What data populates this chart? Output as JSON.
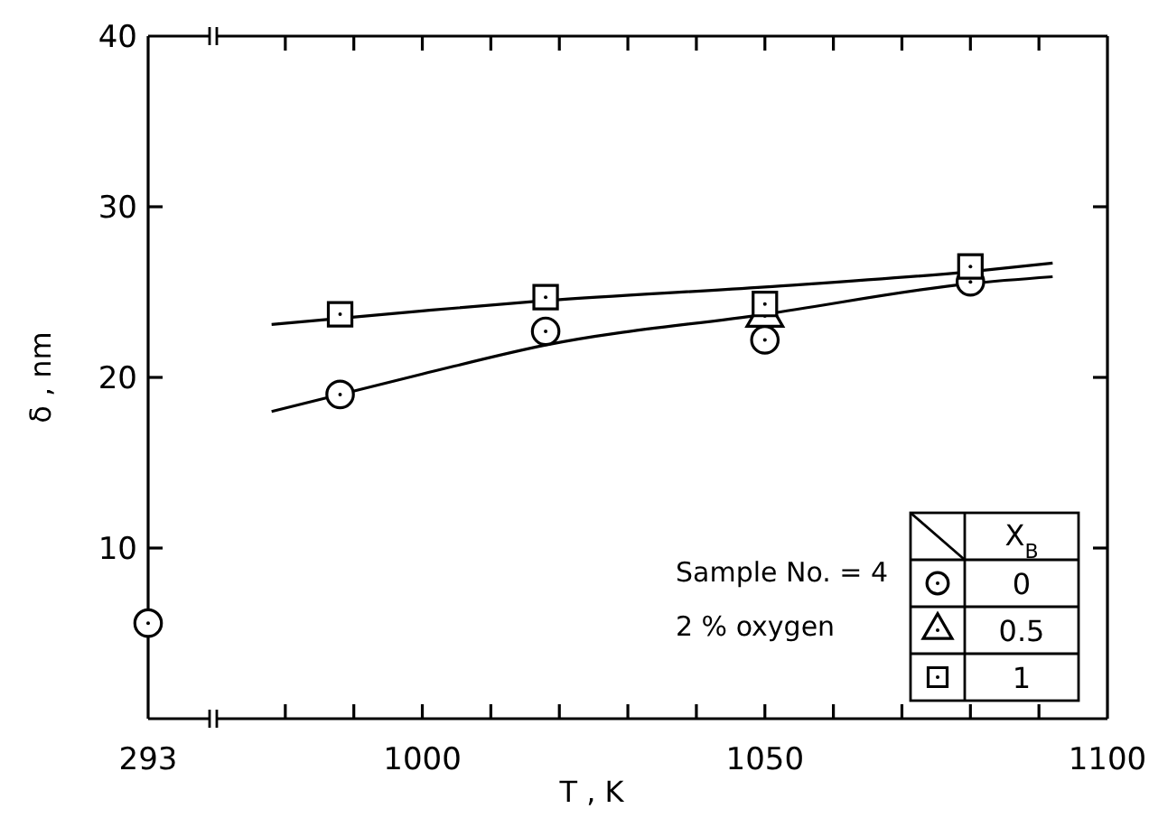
{
  "chart_data": [
    {
      "type": "scatter",
      "ylabel": "δ , nm",
      "categories": [
        "293"
      ],
      "ylim": [
        0,
        40
      ],
      "yticks": [
        10,
        20,
        30,
        40
      ],
      "series": [
        {
          "marker": "circle",
          "color": "#000000",
          "values": [
            5.6
          ]
        }
      ]
    },
    {
      "type": "scatter",
      "xlabel": "T , K",
      "legend_title": "X$_{B}$",
      "legend": "bottom right",
      "tick_labels": "x",
      "xlim": [
        970,
        1100
      ],
      "ylim": [
        0,
        40
      ],
      "xticks": [
        {
          "value": 980,
          "label": null
        },
        {
          "value": 990,
          "label": null
        },
        1000,
        {
          "value": 1010,
          "label": null
        },
        {
          "value": 1020,
          "label": null
        },
        {
          "value": 1030,
          "label": null
        },
        {
          "value": 1040,
          "label": null
        },
        1050,
        {
          "value": 1060,
          "label": null
        },
        {
          "value": 1070,
          "label": null
        },
        {
          "value": 1080,
          "label": null
        },
        {
          "value": 1090,
          "label": null
        },
        1100
      ],
      "yticks": [
        10,
        20,
        30,
        40
      ],
      "annotations": [
        "Sample No. = 4",
        "2 % oxygen"
      ],
      "series": [
        {
          "type": "line",
          "color": "#000000",
          "x": [
            978,
            1000,
            1018,
            1050,
            1080,
            1092
          ],
          "values": [
            23.1,
            23.9,
            24.5,
            25.3,
            26.2,
            26.7
          ]
        },
        {
          "type": "line",
          "color": "#000000",
          "x": [
            978,
            1000,
            1018,
            1050,
            1080,
            1092
          ],
          "values": [
            18.0,
            20.2,
            21.9,
            23.7,
            25.5,
            25.9
          ]
        },
        {
          "name": "0",
          "marker": "circle",
          "color": "#000000",
          "x": [
            988,
            1018,
            1050,
            1080
          ],
          "values": [
            19.0,
            22.7,
            22.2,
            25.6
          ]
        },
        {
          "name": "0.5",
          "marker": "triangle",
          "color": "#000000",
          "x": [
            1050
          ],
          "values": [
            23.6
          ]
        },
        {
          "name": "1",
          "marker": "square",
          "color": "#000000",
          "x": [
            988,
            1018,
            1050,
            1080
          ],
          "values": [
            23.7,
            24.7,
            24.3,
            26.5
          ]
        }
      ]
    }
  ]
}
